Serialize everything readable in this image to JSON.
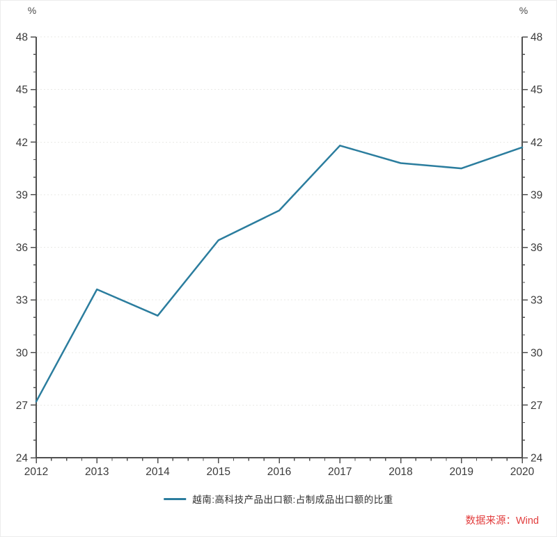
{
  "chart": {
    "unit_left": "%",
    "unit_right": "%",
    "legend": {
      "label": "越南:高科技产品出口额:占制成品出口额的比重"
    },
    "source": "数据来源：Wind",
    "colors": {
      "line": "#2b7d9e",
      "axis": "#4f4f4f",
      "tick_label": "#3a3a3a",
      "grid": "#e9e9e6",
      "source_text": "#e23d3d",
      "background": "#ffffff"
    }
  },
  "chart_data": {
    "type": "line",
    "title": "",
    "xlabel": "",
    "ylabel": "%",
    "x": [
      2012,
      2013,
      2014,
      2015,
      2016,
      2017,
      2018,
      2019,
      2020
    ],
    "series": [
      {
        "name": "越南:高科技产品出口额:占制成品出口额的比重",
        "values": [
          27.2,
          33.6,
          32.1,
          36.4,
          38.1,
          41.8,
          40.8,
          40.5,
          41.7
        ]
      }
    ],
    "ylim": [
      24,
      48
    ],
    "y_major_step": 3,
    "y_minor_step": 1,
    "x_major_step": 1,
    "x_minor_step": 0.25,
    "grid": "horizontal-dotted",
    "dual_y_axis": true,
    "legend_position": "bottom-center",
    "y_tick_labels": [
      24,
      27,
      30,
      33,
      36,
      39,
      42,
      45,
      48
    ],
    "x_tick_labels": [
      "2012",
      "2013",
      "2014",
      "2015",
      "2016",
      "2017",
      "2018",
      "2019",
      "2020"
    ]
  }
}
